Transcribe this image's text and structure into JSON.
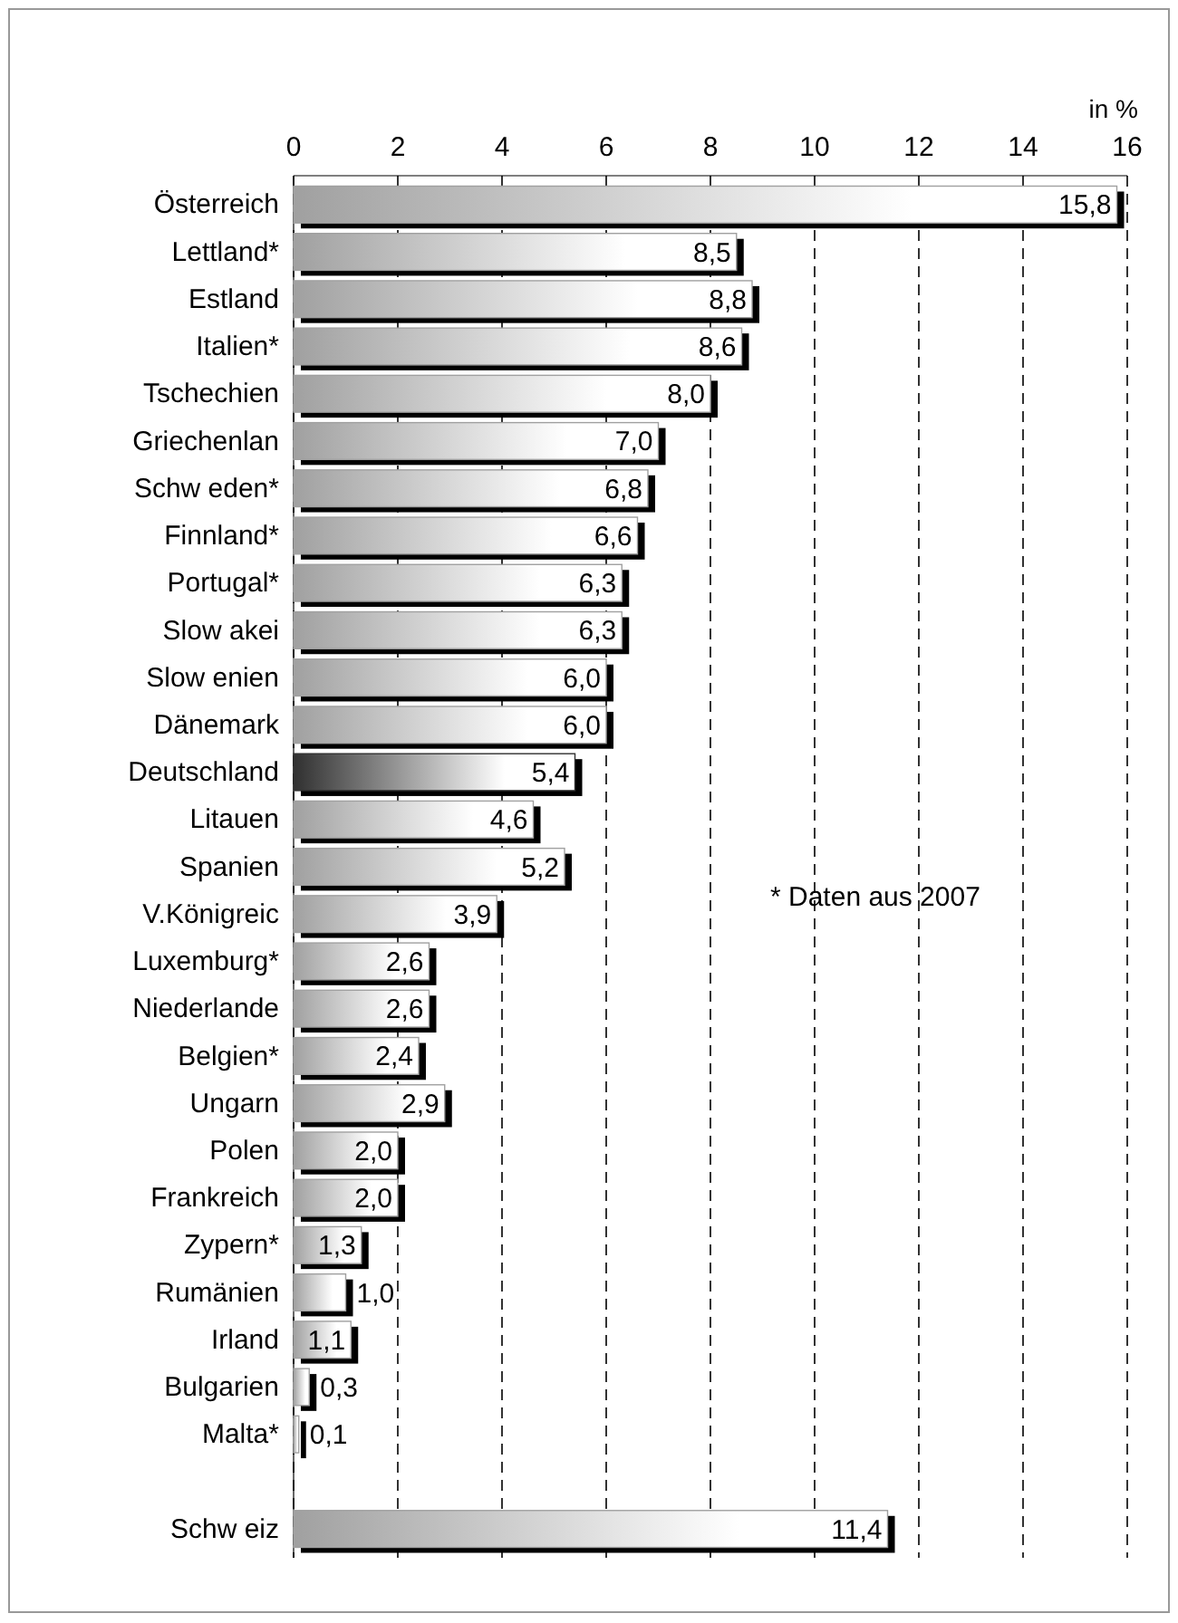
{
  "chart_data": {
    "type": "bar",
    "orientation": "horizontal",
    "xlabel": "in %",
    "categories": [
      "Österreich",
      "Lettland*",
      "Estland",
      "Italien*",
      "Tschechien",
      "Griechenlan",
      "Schw eden*",
      "Finnland*",
      "Portugal*",
      "Slow akei",
      "Slow enien",
      "Dänemark",
      "Deutschland",
      "Litauen",
      "Spanien",
      "V.Königreic",
      "Luxemburg*",
      "Niederlande",
      "Belgien*",
      "Ungarn",
      "Polen",
      "Frankreich",
      "Zypern*",
      "Rumänien",
      "Irland",
      "Bulgarien",
      "Malta*",
      null,
      "Schw eiz"
    ],
    "values": [
      15.8,
      8.5,
      8.8,
      8.6,
      8.0,
      7.0,
      6.8,
      6.6,
      6.3,
      6.3,
      6.0,
      6.0,
      5.4,
      4.6,
      5.2,
      3.9,
      2.6,
      2.6,
      2.4,
      2.9,
      2.0,
      2.0,
      1.3,
      1.0,
      1.1,
      0.3,
      0.1,
      null,
      11.4
    ],
    "value_labels": [
      "15,8",
      "8,5",
      "8,8",
      "8,6",
      "8,0",
      "7,0",
      "6,8",
      "6,6",
      "6,3",
      "6,3",
      "6,0",
      "6,0",
      "5,4",
      "4,6",
      "5,2",
      "3,9",
      "2,6",
      "2,6",
      "2,4",
      "2,9",
      "2,0",
      "2,0",
      "1,3",
      "1,0",
      "1,1",
      "0,3",
      "0,1",
      null,
      "11,4"
    ],
    "colors": [
      "#a0a0a0",
      "#a0a0a0",
      "#a0a0a0",
      "#a0a0a0",
      "#a0a0a0",
      "#a0a0a0",
      "#a0a0a0",
      "#a0a0a0",
      "#a0a0a0",
      "#a0a0a0",
      "#a0a0a0",
      "#a0a0a0",
      "#303030",
      "#a0a0a0",
      "#a0a0a0",
      "#a0a0a0",
      "#a0a0a0",
      "#a0a0a0",
      "#a0a0a0",
      "#a0a0a0",
      "#a0a0a0",
      "#a0a0a0",
      "#a0a0a0",
      "#a0a0a0",
      "#a0a0a0",
      "#a0a0a0",
      "#a0a0a0",
      "#a0a0a0",
      "#a0a0a0"
    ],
    "xlim": [
      0,
      16
    ],
    "xticks": [
      0,
      2,
      4,
      6,
      8,
      10,
      12,
      14,
      16
    ],
    "grid": "x",
    "annotations": [
      "* Daten aus 2007"
    ]
  }
}
